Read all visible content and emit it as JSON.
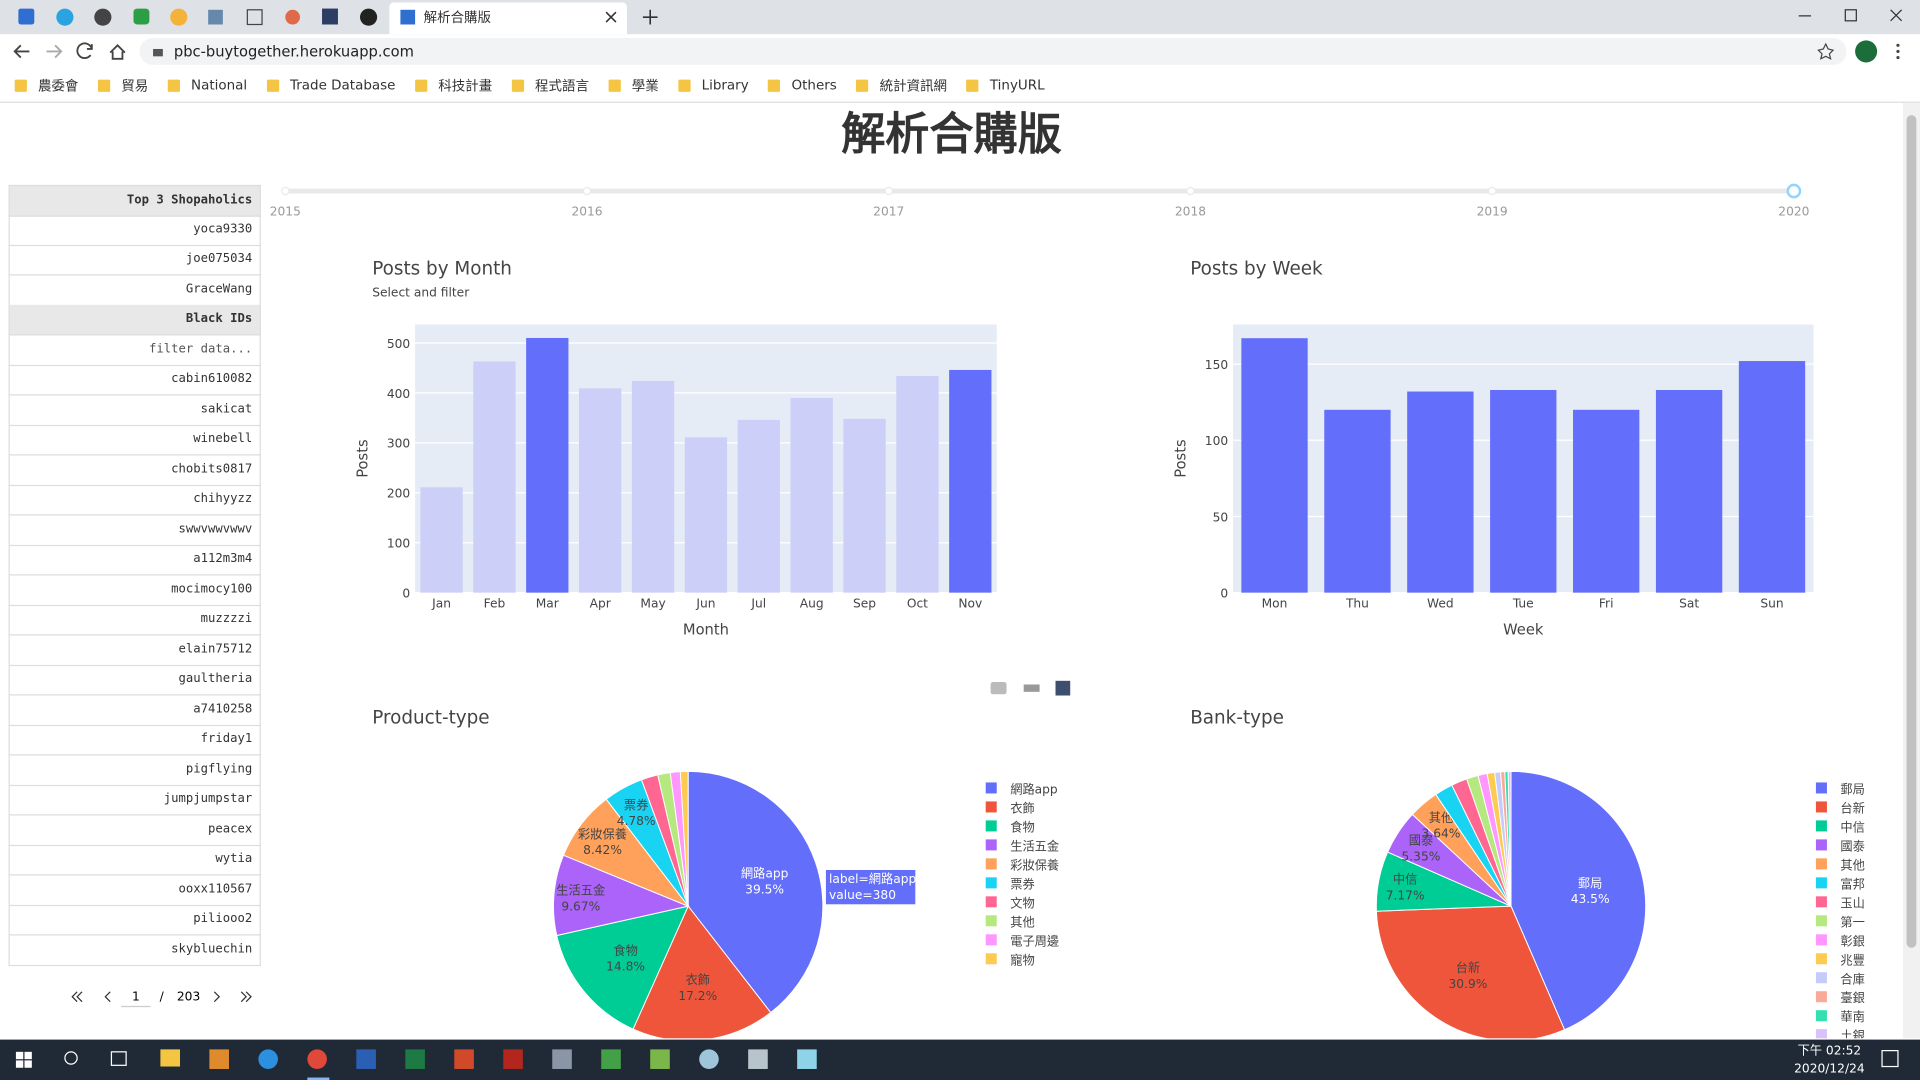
{
  "browser": {
    "tab_title": "解析合購版",
    "url": "pbc-buytogether.herokuapp.com",
    "bookmarks": [
      "農委會",
      "貿易",
      "National",
      "Trade Database",
      "科技計畫",
      "程式語言",
      "學業",
      "Library",
      "Others",
      "統計資訊網",
      "TinyURL"
    ]
  },
  "page": {
    "title": "解析合購版",
    "slider": {
      "marks": [
        2015,
        2016,
        2017,
        2018,
        2019,
        2020
      ],
      "value": 2020
    },
    "table": {
      "top_header": "Top 3 Shopaholics",
      "top_rows": [
        "yoca9330",
        "joe075034",
        "GraceWang"
      ],
      "black_header": "Black IDs",
      "filter_placeholder": "filter data...",
      "black_rows": [
        "cabin610082",
        "sakicat",
        "winebell",
        "chobits0817",
        "chihyyzz",
        "swwvwwvwwv",
        "a112m3m4",
        "mocimocy100",
        "muzzzzi",
        "elain75712",
        "gaultheria",
        "a7410258",
        "friday1",
        "pigflying",
        "jumpjumpstar",
        "peacex",
        "wytia",
        "ooxx110567",
        "piliooo2",
        "skybluechin"
      ]
    },
    "pagination": {
      "current": 1,
      "separator": "/",
      "total": 203
    }
  },
  "taskbar": {
    "time": "下午 02:52",
    "date": "2020/12/24"
  },
  "chart_data": [
    {
      "type": "bar",
      "title": "Posts by Month",
      "subtitle": "Select and filter",
      "x_label": "Month",
      "y_label": "Posts",
      "categories": [
        "Jan",
        "Feb",
        "Mar",
        "Apr",
        "May",
        "Jun",
        "Jul",
        "Aug",
        "Sep",
        "Oct",
        "Nov"
      ],
      "values": [
        211,
        463,
        510,
        409,
        424,
        311,
        346,
        390,
        348,
        434,
        446
      ],
      "colors": [
        "#ccd0f9",
        "#ccd0f9",
        "#636efa",
        "#ccd0f9",
        "#ccd0f9",
        "#ccd0f9",
        "#ccd0f9",
        "#ccd0f9",
        "#ccd0f9",
        "#ccd0f9",
        "#636efa"
      ],
      "ylim": [
        0,
        537
      ],
      "yticks": [
        0,
        100,
        200,
        300,
        400,
        500
      ],
      "grid": true
    },
    {
      "type": "bar",
      "title": "Posts by Week",
      "x_label": "Week",
      "y_label": "Posts",
      "categories": [
        "Mon",
        "Thu",
        "Wed",
        "Tue",
        "Fri",
        "Sat",
        "Sun"
      ],
      "values": [
        167,
        120,
        132,
        133,
        120,
        133,
        152
      ],
      "color": "#636efa",
      "ylim": [
        0,
        176
      ],
      "yticks": [
        0,
        50,
        100,
        150
      ],
      "grid": true
    },
    {
      "type": "pie",
      "title": "Product-type",
      "categories": [
        "網路app",
        "衣飾",
        "食物",
        "生活五金",
        "彩妝保養",
        "票券",
        "文物",
        "其他",
        "電子周邊",
        "寵物"
      ],
      "values": [
        39.5,
        17.2,
        14.8,
        9.67,
        8.42,
        4.78,
        2.0,
        1.5,
        1.2,
        0.93
      ],
      "value_labels": [
        "39.5%",
        "17.2%",
        "14.8%",
        "9.67%",
        "8.42%",
        "4.78%",
        null,
        null,
        null,
        null
      ],
      "colors": [
        "#636efa",
        "#ef553b",
        "#00cc96",
        "#ab63fa",
        "#ffa15a",
        "#19d3f3",
        "#ff6692",
        "#b6e880",
        "#ff97ff",
        "#fecb52"
      ],
      "hover": {
        "label": "label=網路app",
        "value": "value=380"
      }
    },
    {
      "type": "pie",
      "title": "Bank-type",
      "categories": [
        "郵局",
        "台新",
        "中信",
        "國泰",
        "其他",
        "富邦",
        "玉山",
        "第一",
        "彰銀",
        "兆豐",
        "合庫",
        "臺銀",
        "華南",
        "土銀"
      ],
      "values": [
        43.5,
        30.9,
        7.17,
        5.35,
        3.64,
        2.2,
        1.9,
        1.4,
        1.1,
        0.9,
        0.7,
        0.5,
        0.4,
        0.34
      ],
      "value_labels": [
        "43.5%",
        "30.9%",
        "7.17%",
        "5.35%",
        "3.64%",
        null,
        null,
        null,
        null,
        null,
        null,
        null,
        null,
        null
      ],
      "colors": [
        "#636efa",
        "#ef553b",
        "#00cc96",
        "#ab63fa",
        "#ffa15a",
        "#19d3f3",
        "#ff6692",
        "#b6e880",
        "#ff97ff",
        "#fecb52",
        "#c6cbf9",
        "#f9a99a",
        "#33e0b0",
        "#d9c2fc"
      ]
    }
  ]
}
